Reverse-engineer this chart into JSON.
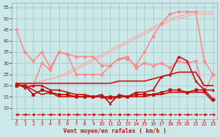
{
  "title": "",
  "xlabel": "Vent moyen/en rafales ( km/h )",
  "background_color": "#cce8e8",
  "grid_color": "#aacfcf",
  "x": [
    0,
    1,
    2,
    3,
    4,
    5,
    6,
    7,
    8,
    9,
    10,
    11,
    12,
    13,
    14,
    15,
    16,
    17,
    18,
    19,
    20,
    21,
    22,
    23
  ],
  "series": [
    {
      "label": "rafales_top1",
      "color": "#ffaaaa",
      "lw": 1.0,
      "marker": null,
      "ms": 0,
      "ls": "-",
      "y": [
        21,
        21,
        21,
        22,
        23,
        24,
        26,
        28,
        30,
        32,
        34,
        36,
        38,
        40,
        42,
        44,
        46,
        48,
        50,
        51,
        52,
        53,
        53,
        53
      ]
    },
    {
      "label": "rafales_top2",
      "color": "#ffaaaa",
      "lw": 1.0,
      "marker": null,
      "ms": 0,
      "ls": "-",
      "y": [
        21,
        21,
        21,
        22,
        23,
        24,
        25,
        27,
        29,
        31,
        33,
        35,
        37,
        39,
        41,
        43,
        45,
        47,
        49,
        50,
        51,
        52,
        52,
        52
      ]
    },
    {
      "label": "line_pink_markers_top",
      "color": "#ff8888",
      "lw": 1.2,
      "marker": "D",
      "ms": 2.5,
      "ls": "-",
      "y": [
        45,
        35,
        31,
        35,
        28,
        35,
        34,
        33,
        33,
        33,
        29,
        29,
        32,
        32,
        29,
        35,
        42,
        48,
        52,
        53,
        53,
        53,
        31,
        25
      ]
    },
    {
      "label": "line_pink_markers_mid",
      "color": "#ff8888",
      "lw": 1.2,
      "marker": "D",
      "ms": 2.5,
      "ls": "-",
      "y": [
        21,
        20,
        20,
        30,
        27,
        35,
        34,
        25,
        25,
        25,
        25,
        29,
        32,
        33,
        28,
        30,
        29,
        30,
        28,
        31,
        30,
        31,
        17,
        25
      ]
    },
    {
      "label": "line_dark_markers",
      "color": "#cc1111",
      "lw": 1.3,
      "marker": "^",
      "ms": 2.5,
      "ls": "-",
      "y": [
        21,
        19,
        20,
        20,
        18,
        18,
        17,
        16,
        16,
        15,
        16,
        12,
        16,
        15,
        17,
        17,
        18,
        24,
        25,
        33,
        31,
        22,
        18,
        18
      ]
    },
    {
      "label": "line_dark_flat1",
      "color": "#cc1111",
      "lw": 1.3,
      "marker": null,
      "ms": 0,
      "ls": "-",
      "y": [
        21,
        21,
        21,
        21,
        21,
        21,
        21,
        21,
        21,
        21,
        21,
        21,
        22,
        22,
        22,
        22,
        23,
        24,
        25,
        26,
        26,
        26,
        20,
        20
      ]
    },
    {
      "label": "line_dark_flat2",
      "color": "#cc1111",
      "lw": 1.3,
      "marker": null,
      "ms": 0,
      "ls": "-",
      "y": [
        20,
        20,
        18,
        16,
        17,
        15,
        15,
        15,
        15,
        15,
        15,
        14,
        15,
        15,
        15,
        15,
        16,
        16,
        17,
        17,
        17,
        17,
        17,
        13
      ]
    },
    {
      "label": "line_dark_sq",
      "color": "#bb1111",
      "lw": 1.3,
      "marker": "s",
      "ms": 2.5,
      "ls": "-",
      "y": [
        20,
        20,
        16,
        18,
        17,
        16,
        16,
        15,
        15,
        15,
        15,
        15,
        15,
        15,
        16,
        16,
        16,
        17,
        18,
        18,
        17,
        18,
        18,
        14
      ]
    },
    {
      "label": "dashed_bottom",
      "color": "#cc1111",
      "lw": 1.0,
      "marker": "<",
      "ms": 2.5,
      "ls": "--",
      "y": [
        7,
        7,
        7,
        7,
        7,
        7,
        7,
        7,
        7,
        7,
        7,
        7,
        7,
        7,
        7,
        7,
        7,
        7,
        7,
        7,
        7,
        7,
        7,
        7
      ]
    }
  ],
  "ylim": [
    5,
    57
  ],
  "xlim": [
    -0.5,
    23.5
  ],
  "yticks": [
    10,
    15,
    20,
    25,
    30,
    35,
    40,
    45,
    50,
    55
  ],
  "xticks": [
    0,
    1,
    2,
    3,
    4,
    5,
    6,
    7,
    8,
    9,
    10,
    11,
    12,
    13,
    14,
    15,
    16,
    17,
    18,
    19,
    20,
    21,
    22,
    23
  ]
}
